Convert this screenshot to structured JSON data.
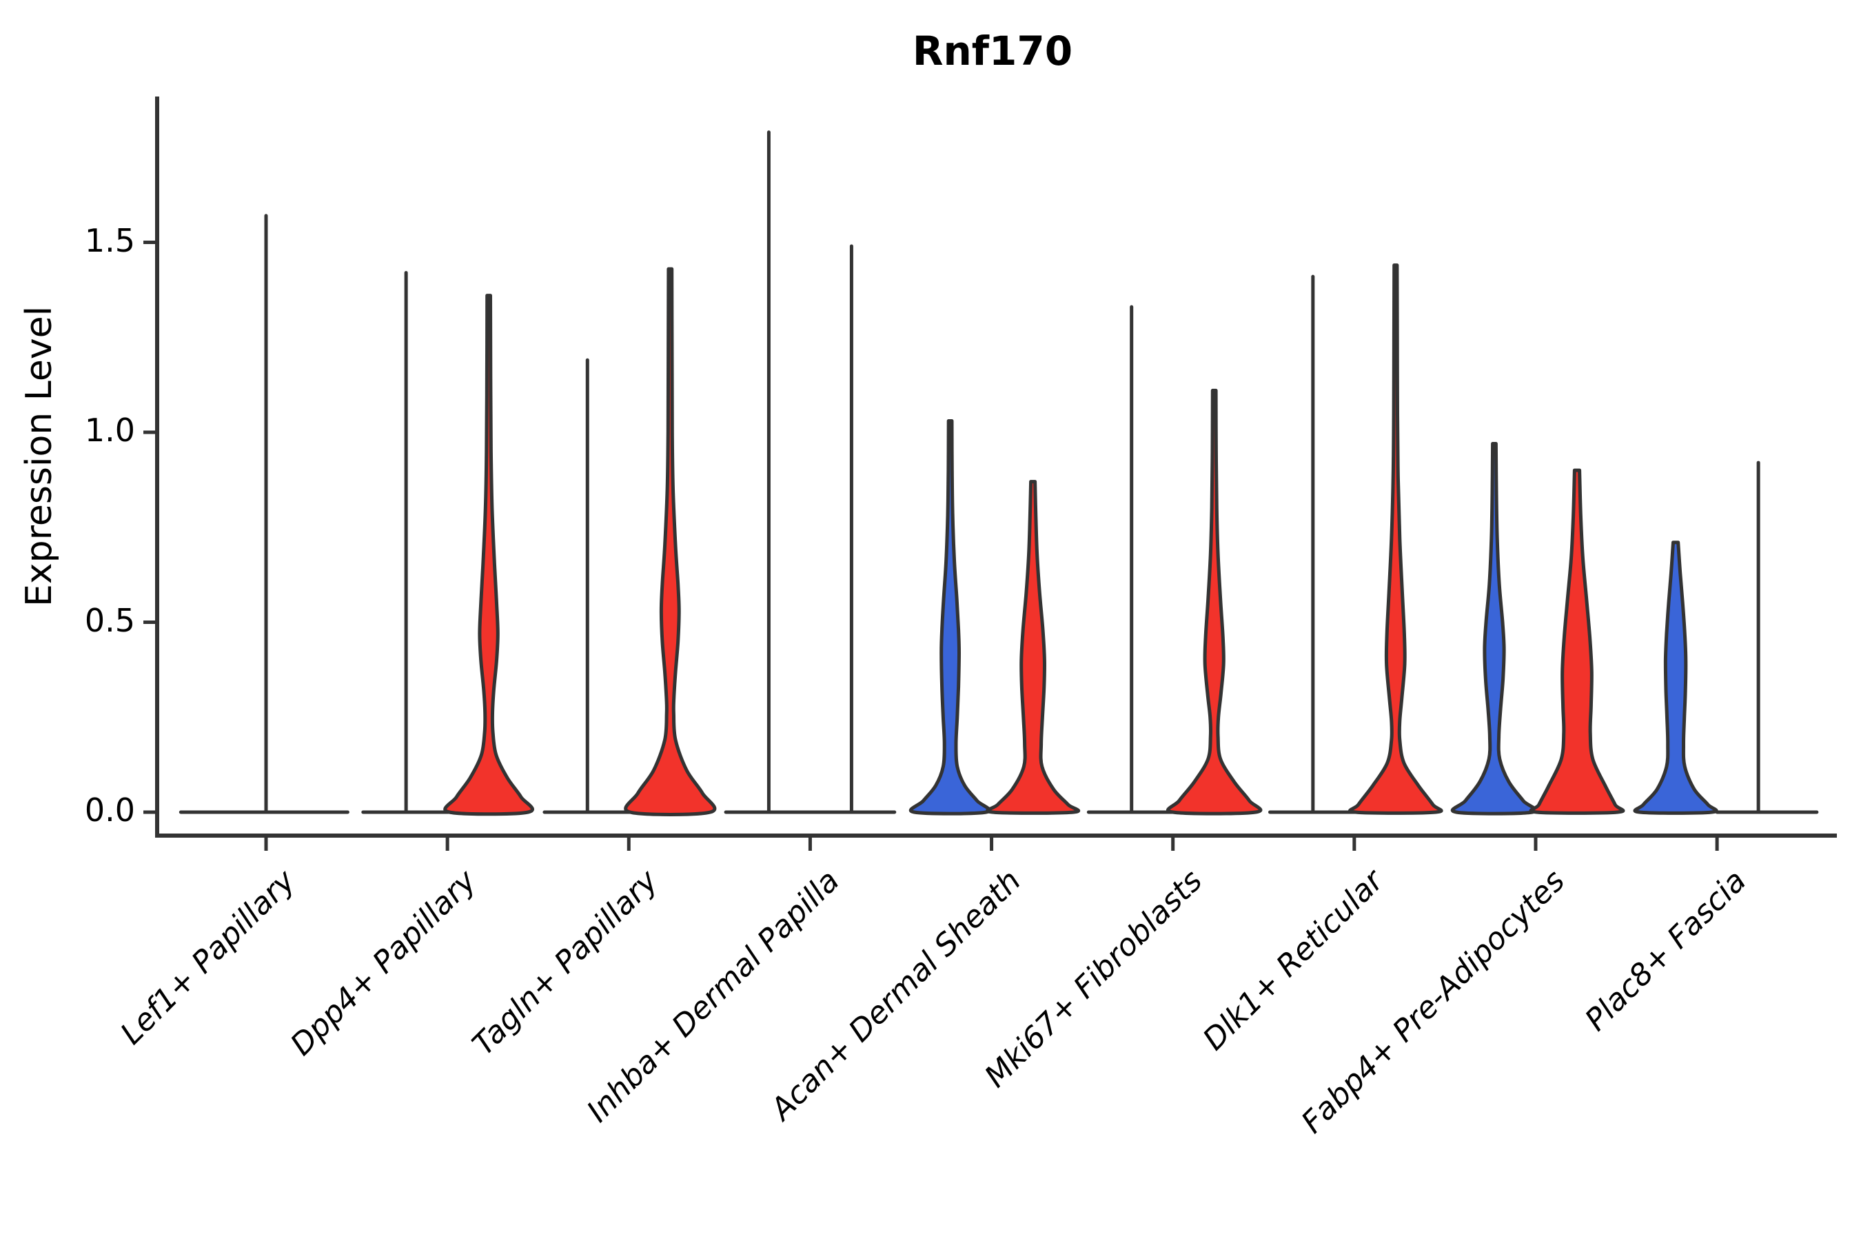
{
  "chart_data": {
    "type": "violin",
    "title": "Rnf170",
    "ylabel": "Expression Level",
    "xlabel": "",
    "yticks": [
      "0.0",
      "0.5",
      "1.0",
      "1.5"
    ],
    "ytick_values": [
      0.0,
      0.5,
      1.0,
      1.5
    ],
    "ylim": [
      -0.06,
      1.88
    ],
    "grid": false,
    "legend": "none",
    "colors": {
      "blue": "#3A65D8",
      "red": "#F2332B",
      "outline": "#333333",
      "axis": "#000000"
    },
    "categories": [
      "Lef1+ Papillary",
      "Dpp4+ Papillary",
      "Tagln+ Papillary",
      "Inhba+ Dermal Papilla",
      "Acan+ Dermal Sheath",
      "Mki67+ Fibroblasts",
      "Dlk1+ Reticular",
      "Fabp4+ Pre-Adipocytes",
      "Plac8+ Fascia"
    ],
    "violins": [
      {
        "category": "Lef1+ Papillary",
        "items": [
          {
            "pos": "center",
            "kind": "spike",
            "max": 1.57
          },
          {
            "pos": "center",
            "kind": "flatline",
            "span": [
              -0.47,
              0.45
            ]
          }
        ]
      },
      {
        "category": "Dpp4+ Papillary",
        "items": [
          {
            "pos": "left",
            "kind": "spike",
            "max": 1.42
          },
          {
            "pos": "center",
            "kind": "flatline",
            "span": [
              -0.465,
              0.005
            ]
          },
          {
            "pos": "right",
            "kind": "violin",
            "color": "red",
            "max": 1.36,
            "profile": [
              [
                1.36,
                0.04
              ],
              [
                1.15,
                0.045
              ],
              [
                0.95,
                0.055
              ],
              [
                0.8,
                0.08
              ],
              [
                0.65,
                0.14
              ],
              [
                0.55,
                0.19
              ],
              [
                0.47,
                0.22
              ],
              [
                0.4,
                0.19
              ],
              [
                0.32,
                0.12
              ],
              [
                0.26,
                0.09
              ],
              [
                0.21,
                0.1
              ],
              [
                0.15,
                0.18
              ],
              [
                0.09,
                0.45
              ],
              [
                0.04,
                0.78
              ],
              [
                0.0,
                0.95
              ]
            ]
          }
        ]
      },
      {
        "category": "Tagln+ Papillary",
        "items": [
          {
            "pos": "left",
            "kind": "spike",
            "max": 1.19
          },
          {
            "pos": "center",
            "kind": "flatline",
            "span": [
              -0.465,
              0.005
            ]
          },
          {
            "pos": "right",
            "kind": "violin",
            "color": "red",
            "max": 1.43,
            "profile": [
              [
                1.43,
                0.04
              ],
              [
                1.2,
                0.045
              ],
              [
                1.0,
                0.05
              ],
              [
                0.85,
                0.07
              ],
              [
                0.7,
                0.13
              ],
              [
                0.6,
                0.19
              ],
              [
                0.53,
                0.215
              ],
              [
                0.45,
                0.19
              ],
              [
                0.37,
                0.13
              ],
              [
                0.3,
                0.09
              ],
              [
                0.26,
                0.085
              ],
              [
                0.19,
                0.13
              ],
              [
                0.11,
                0.4
              ],
              [
                0.05,
                0.78
              ],
              [
                0.0,
                0.97
              ]
            ]
          }
        ]
      },
      {
        "category": "Inhba+ Dermal Papilla",
        "items": [
          {
            "pos": "left",
            "kind": "spike",
            "max": 1.79
          },
          {
            "pos": "right",
            "kind": "spike",
            "max": 1.49
          },
          {
            "pos": "center",
            "kind": "flatline",
            "span": [
              -0.465,
              0.465
            ]
          }
        ]
      },
      {
        "category": "Acan+ Dermal Sheath",
        "items": [
          {
            "pos": "left",
            "kind": "violin",
            "color": "blue",
            "max": 1.03,
            "profile": [
              [
                1.03,
                0.04
              ],
              [
                0.9,
                0.045
              ],
              [
                0.78,
                0.06
              ],
              [
                0.66,
                0.1
              ],
              [
                0.56,
                0.16
              ],
              [
                0.48,
                0.2
              ],
              [
                0.42,
                0.215
              ],
              [
                0.33,
                0.2
              ],
              [
                0.25,
                0.17
              ],
              [
                0.18,
                0.14
              ],
              [
                0.12,
                0.17
              ],
              [
                0.07,
                0.35
              ],
              [
                0.03,
                0.65
              ],
              [
                0.0,
                0.87
              ]
            ]
          },
          {
            "pos": "right",
            "kind": "violin",
            "color": "red",
            "max": 0.87,
            "profile": [
              [
                0.87,
                0.05
              ],
              [
                0.78,
                0.07
              ],
              [
                0.68,
                0.1
              ],
              [
                0.58,
                0.16
              ],
              [
                0.48,
                0.24
              ],
              [
                0.4,
                0.28
              ],
              [
                0.33,
                0.27
              ],
              [
                0.25,
                0.23
              ],
              [
                0.18,
                0.2
              ],
              [
                0.12,
                0.22
              ],
              [
                0.06,
                0.5
              ],
              [
                0.02,
                0.85
              ],
              [
                0.0,
                0.98
              ]
            ]
          }
        ]
      },
      {
        "category": "Mki67+ Fibroblasts",
        "items": [
          {
            "pos": "left",
            "kind": "spike",
            "max": 1.33
          },
          {
            "pos": "center",
            "kind": "flatline",
            "span": [
              -0.465,
              0.005
            ]
          },
          {
            "pos": "right",
            "kind": "violin",
            "color": "red",
            "max": 1.11,
            "profile": [
              [
                1.11,
                0.04
              ],
              [
                0.95,
                0.045
              ],
              [
                0.8,
                0.06
              ],
              [
                0.68,
                0.09
              ],
              [
                0.56,
                0.15
              ],
              [
                0.46,
                0.21
              ],
              [
                0.39,
                0.225
              ],
              [
                0.31,
                0.16
              ],
              [
                0.25,
                0.1
              ],
              [
                0.2,
                0.09
              ],
              [
                0.14,
                0.15
              ],
              [
                0.08,
                0.48
              ],
              [
                0.03,
                0.85
              ],
              [
                0.0,
                1.0
              ]
            ]
          }
        ]
      },
      {
        "category": "Dlk1+ Reticular",
        "items": [
          {
            "pos": "left",
            "kind": "spike",
            "max": 1.41
          },
          {
            "pos": "center",
            "kind": "flatline",
            "span": [
              -0.465,
              0.005
            ]
          },
          {
            "pos": "right",
            "kind": "violin",
            "color": "red",
            "max": 1.44,
            "profile": [
              [
                1.44,
                0.035
              ],
              [
                1.25,
                0.04
              ],
              [
                1.05,
                0.045
              ],
              [
                0.88,
                0.06
              ],
              [
                0.72,
                0.1
              ],
              [
                0.58,
                0.16
              ],
              [
                0.47,
                0.21
              ],
              [
                0.39,
                0.22
              ],
              [
                0.3,
                0.15
              ],
              [
                0.24,
                0.1
              ],
              [
                0.19,
                0.1
              ],
              [
                0.13,
                0.2
              ],
              [
                0.07,
                0.55
              ],
              [
                0.02,
                0.9
              ],
              [
                0.0,
                0.97
              ]
            ]
          }
        ]
      },
      {
        "category": "Fabp4+ Pre-Adipocytes",
        "items": [
          {
            "pos": "left",
            "kind": "violin",
            "color": "blue",
            "max": 0.97,
            "profile": [
              [
                0.97,
                0.04
              ],
              [
                0.84,
                0.05
              ],
              [
                0.72,
                0.07
              ],
              [
                0.6,
                0.12
              ],
              [
                0.5,
                0.2
              ],
              [
                0.43,
                0.235
              ],
              [
                0.35,
                0.21
              ],
              [
                0.27,
                0.15
              ],
              [
                0.2,
                0.11
              ],
              [
                0.14,
                0.13
              ],
              [
                0.08,
                0.35
              ],
              [
                0.03,
                0.7
              ],
              [
                0.0,
                0.92
              ]
            ]
          },
          {
            "pos": "right",
            "kind": "violin",
            "color": "red",
            "max": 0.9,
            "profile": [
              [
                0.9,
                0.06
              ],
              [
                0.78,
                0.09
              ],
              [
                0.67,
                0.14
              ],
              [
                0.56,
                0.23
              ],
              [
                0.46,
                0.31
              ],
              [
                0.37,
                0.355
              ],
              [
                0.28,
                0.34
              ],
              [
                0.21,
                0.32
              ],
              [
                0.14,
                0.38
              ],
              [
                0.07,
                0.68
              ],
              [
                0.02,
                0.92
              ],
              [
                0.0,
                0.98
              ]
            ]
          }
        ]
      },
      {
        "category": "Plac8+ Fascia",
        "items": [
          {
            "pos": "left",
            "kind": "violin",
            "color": "blue",
            "max": 0.71,
            "profile": [
              [
                0.71,
                0.06
              ],
              [
                0.63,
                0.11
              ],
              [
                0.55,
                0.17
              ],
              [
                0.47,
                0.22
              ],
              [
                0.4,
                0.245
              ],
              [
                0.32,
                0.235
              ],
              [
                0.25,
                0.21
              ],
              [
                0.18,
                0.19
              ],
              [
                0.12,
                0.22
              ],
              [
                0.06,
                0.45
              ],
              [
                0.02,
                0.78
              ],
              [
                0.0,
                0.87
              ]
            ]
          },
          {
            "pos": "right",
            "kind": "spike",
            "max": 0.92
          },
          {
            "pos": "center",
            "kind": "flatline",
            "span": [
              0.0,
              0.55
            ]
          }
        ]
      }
    ]
  }
}
